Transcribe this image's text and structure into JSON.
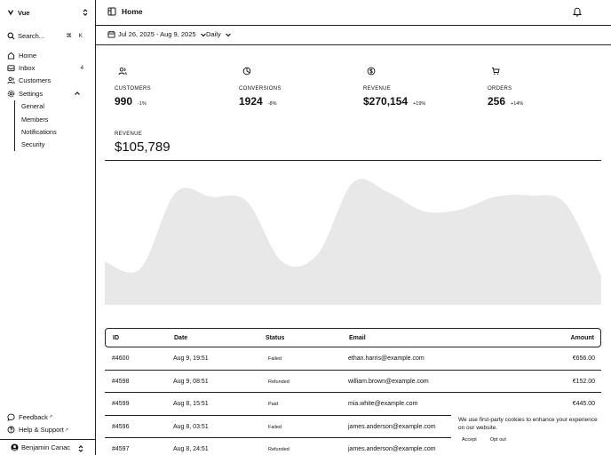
{
  "sidebar": {
    "team": "Vue",
    "search_label": "Search...",
    "search_shortcut": "⌘ K",
    "nav": [
      {
        "label": "Home",
        "icon": "home-icon"
      },
      {
        "label": "Inbox",
        "icon": "inbox-icon",
        "badge": "4"
      },
      {
        "label": "Customers",
        "icon": "users-icon"
      },
      {
        "label": "Settings",
        "icon": "gear-icon"
      }
    ],
    "settings_sub": [
      "General",
      "Members",
      "Notifications",
      "Security"
    ],
    "bottom": [
      {
        "label": "Feedback",
        "icon": "chat-icon"
      },
      {
        "label": "Help & Support",
        "icon": "help-icon"
      }
    ],
    "user": "Benjamin Canac"
  },
  "header": {
    "title": "Home"
  },
  "toolbar": {
    "date_range": "Jul 26, 2025 - Aug 9, 2025",
    "period": "Daily"
  },
  "stats": [
    {
      "label": "CUSTOMERS",
      "value": "990",
      "delta": "-1%"
    },
    {
      "label": "CONVERSIONS",
      "value": "1924",
      "delta": "-8%"
    },
    {
      "label": "REVENUE",
      "value": "$270,154",
      "delta": "+19%"
    },
    {
      "label": "ORDERS",
      "value": "256",
      "delta": "+14%"
    }
  ],
  "revenue": {
    "label": "REVENUE",
    "value": "$105,789"
  },
  "chart_data": {
    "type": "area",
    "title": "Revenue",
    "x": [
      0,
      1,
      2,
      3,
      4,
      5,
      6,
      7,
      8,
      9,
      10,
      11,
      12,
      13,
      14
    ],
    "values": [
      30,
      25,
      78,
      75,
      72,
      30,
      35,
      85,
      78,
      65,
      66,
      75,
      76,
      70,
      20
    ],
    "ylim": [
      0,
      100
    ],
    "color": "#e8e8e8"
  },
  "table": {
    "headers": [
      "ID",
      "Date",
      "Status",
      "Email",
      "Amount"
    ],
    "rows": [
      {
        "id": "#4600",
        "date": "Aug 9, 19:51",
        "status": "Failed",
        "email": "ethan.harris@example.com",
        "amount": "€656.00"
      },
      {
        "id": "#4598",
        "date": "Aug 9, 08:51",
        "status": "Refunded",
        "email": "william.brown@example.com",
        "amount": "€152.00"
      },
      {
        "id": "#4599",
        "date": "Aug 8, 15:51",
        "status": "Paid",
        "email": "mia.white@example.com",
        "amount": "€445.00"
      },
      {
        "id": "#4596",
        "date": "Aug 8, 03:51",
        "status": "Failed",
        "email": "james.anderson@example.com",
        "amount": ""
      },
      {
        "id": "#4597",
        "date": "Aug 8, 24:51",
        "status": "Refunded",
        "email": "james.anderson@example.com",
        "amount": ""
      }
    ]
  },
  "cookie": {
    "message": "We use first-party cookies to enhance your experience on our website.",
    "accept": "Accept",
    "opt_out": "Opt out"
  }
}
